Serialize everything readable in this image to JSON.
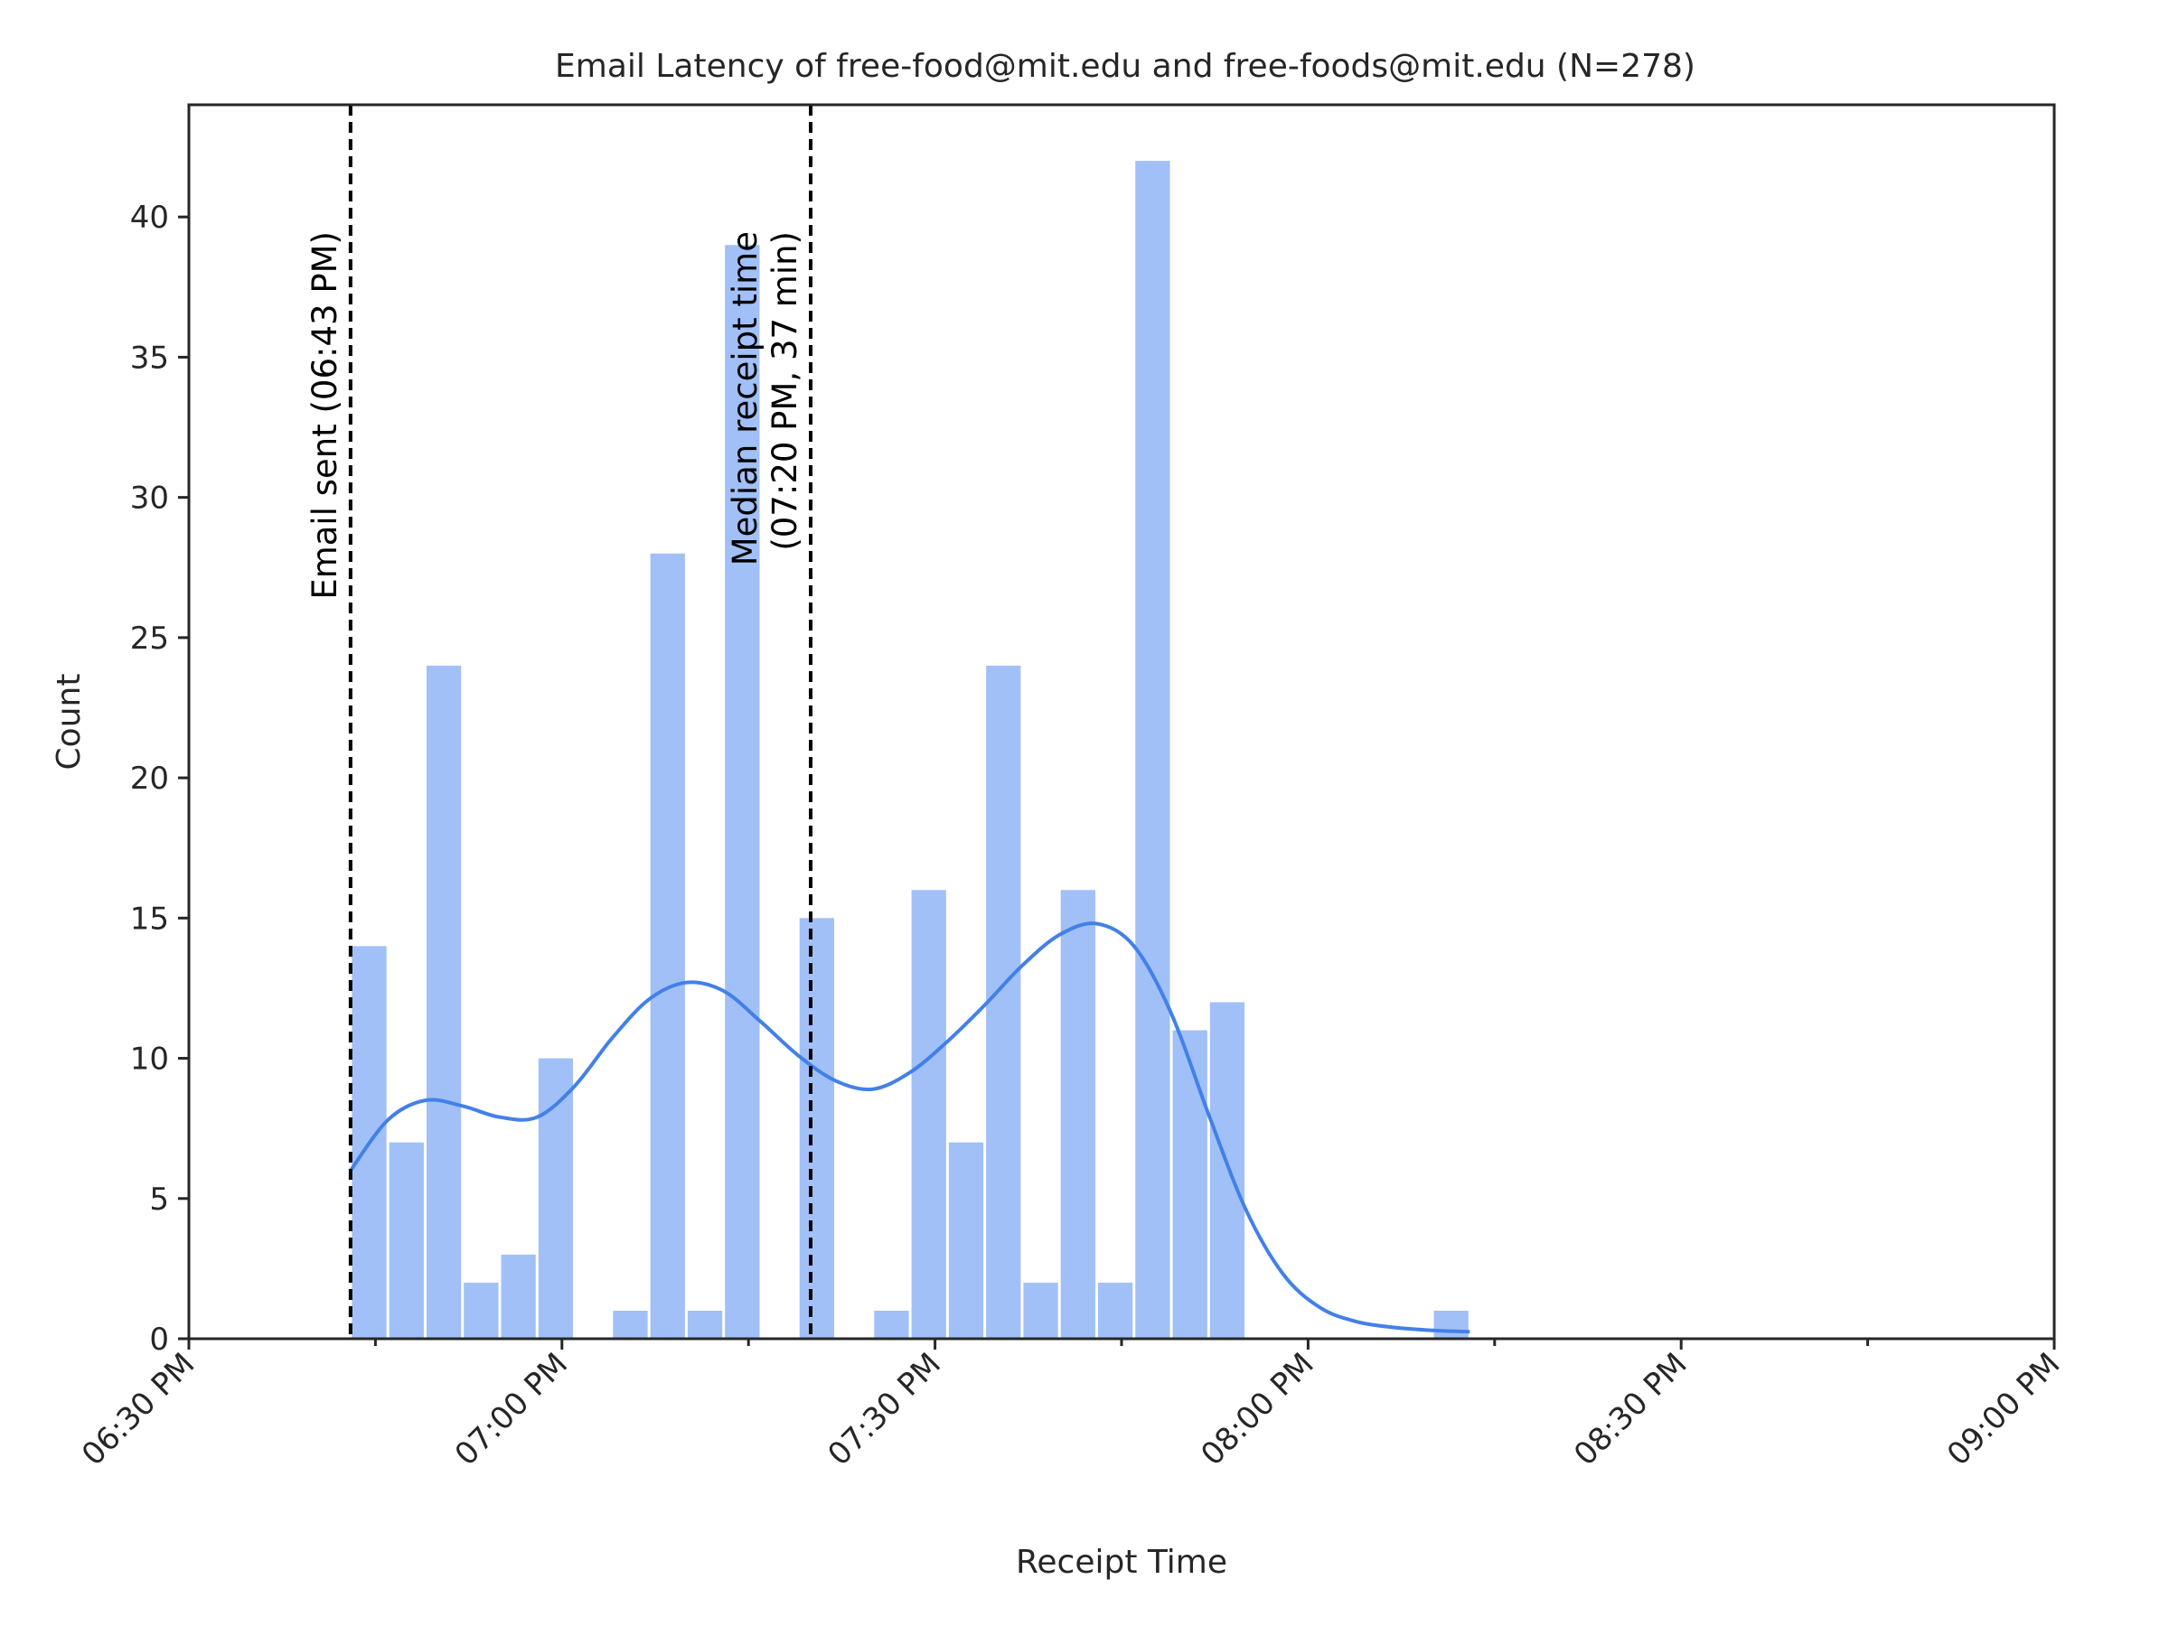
{
  "chart_data": {
    "type": "bar",
    "title": "Email Latency of free-food@mit.edu and free-foods@mit.edu (N=278)",
    "xlabel": "Receipt Time",
    "ylabel": "Count",
    "xlim": [
      "06:30 PM",
      "09:00 PM"
    ],
    "ylim": [
      0,
      44
    ],
    "x_tick_labels": [
      "06:30 PM",
      "07:00 PM",
      "07:30 PM",
      "08:00 PM",
      "08:30 PM",
      "09:00 PM"
    ],
    "y_tick_labels": [
      "0",
      "5",
      "10",
      "15",
      "20",
      "25",
      "30",
      "35",
      "40"
    ],
    "grid": false,
    "bin_width_minutes": 3,
    "bins": [
      {
        "start": "06:43 PM",
        "count": 14
      },
      {
        "start": "06:46 PM",
        "count": 7
      },
      {
        "start": "06:49 PM",
        "count": 24
      },
      {
        "start": "06:52 PM",
        "count": 2
      },
      {
        "start": "06:55 PM",
        "count": 3
      },
      {
        "start": "06:58 PM",
        "count": 10
      },
      {
        "start": "07:01 PM",
        "count": 0
      },
      {
        "start": "07:04 PM",
        "count": 1
      },
      {
        "start": "07:07 PM",
        "count": 28
      },
      {
        "start": "07:10 PM",
        "count": 1
      },
      {
        "start": "07:13 PM",
        "count": 39
      },
      {
        "start": "07:16 PM",
        "count": 0
      },
      {
        "start": "07:19 PM",
        "count": 15
      },
      {
        "start": "07:22 PM",
        "count": 0
      },
      {
        "start": "07:25 PM",
        "count": 1
      },
      {
        "start": "07:28 PM",
        "count": 16
      },
      {
        "start": "07:31 PM",
        "count": 7
      },
      {
        "start": "07:34 PM",
        "count": 24
      },
      {
        "start": "07:37 PM",
        "count": 2
      },
      {
        "start": "07:40 PM",
        "count": 16
      },
      {
        "start": "07:43 PM",
        "count": 2
      },
      {
        "start": "07:46 PM",
        "count": 42
      },
      {
        "start": "07:49 PM",
        "count": 11
      },
      {
        "start": "07:52 PM",
        "count": 12
      },
      {
        "start": "08:10 PM",
        "count": 1
      }
    ],
    "kde": {
      "x": [
        "06:43 PM",
        "06:46 PM",
        "06:49 PM",
        "06:52 PM",
        "06:55 PM",
        "06:58 PM",
        "07:01 PM",
        "07:04 PM",
        "07:07 PM",
        "07:10 PM",
        "07:13 PM",
        "07:16 PM",
        "07:19 PM",
        "07:22 PM",
        "07:25 PM",
        "07:28 PM",
        "07:31 PM",
        "07:34 PM",
        "07:37 PM",
        "07:40 PM",
        "07:43 PM",
        "07:46 PM",
        "07:49 PM",
        "07:52 PM",
        "07:55 PM",
        "07:58 PM",
        "08:01 PM",
        "08:04 PM",
        "08:07 PM",
        "08:10 PM",
        "08:13 PM"
      ],
      "y": [
        6.0,
        7.8,
        8.5,
        8.3,
        7.9,
        7.9,
        9.0,
        10.7,
        12.1,
        12.7,
        12.4,
        11.3,
        10.1,
        9.2,
        8.9,
        9.5,
        10.6,
        11.9,
        13.3,
        14.4,
        14.8,
        14.0,
        11.6,
        8.0,
        4.6,
        2.3,
        1.1,
        0.6,
        0.4,
        0.3,
        0.25
      ]
    },
    "colors": {
      "bar": "#a1c0f7",
      "kde": "#4380e8",
      "axis": "#262626",
      "vline": "#000000"
    },
    "annotations": [
      {
        "x": "06:43 PM",
        "lines": [
          "Email sent (06:43 PM)"
        ]
      },
      {
        "x": "07:20 PM",
        "lines": [
          "Median receipt time",
          "(07:20 PM, 37 min)"
        ]
      }
    ]
  }
}
